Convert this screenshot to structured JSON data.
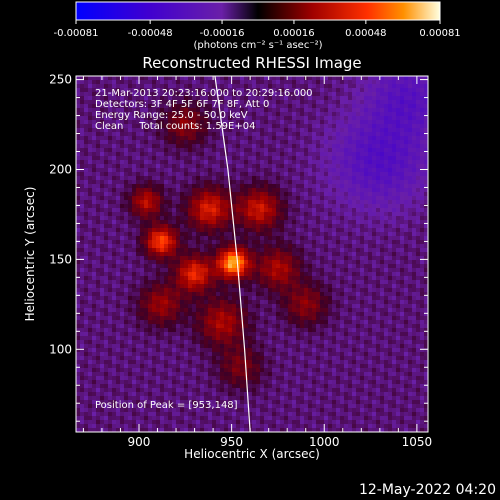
{
  "chart_data": {
    "type": "heatmap",
    "title": "Reconstructed RHESSI Image",
    "xlabel": "Heliocentric X (arcsec)",
    "ylabel": "Heliocentric Y (arcsec)",
    "xlim": [
      866,
      1056
    ],
    "ylim": [
      54,
      252
    ],
    "x_ticks": [
      900,
      950,
      1000,
      1050
    ],
    "y_ticks": [
      100,
      150,
      200,
      250
    ],
    "colorbar": {
      "min": -0.00081,
      "max": 0.00081,
      "tick_values": [
        -0.00081,
        -0.00048,
        -0.00016,
        0.00016,
        0.00048,
        0.00081
      ],
      "tick_labels": [
        "-0.00081",
        "-0.00048",
        "-0.00016",
        "0.00016",
        "0.00048",
        "0.00081"
      ],
      "unit": "(photons cm⁻² s⁻¹ asec⁻²)"
    },
    "annotations": [
      "21-Mar-2013 20:23:16.000 to 20:29:16.000",
      "Detectors: 3F 4F 5F 6F 7F 8F, Att 0",
      "Energy Range: 25.0 - 50.0 keV",
      "Clean     Total counts: 1.59E+04"
    ],
    "peak": {
      "label": "Position of Peak = [953,148]",
      "x": 953,
      "y": 148
    },
    "limb": [
      [
        941,
        252
      ],
      [
        948,
        200
      ],
      [
        953,
        150
      ],
      [
        957,
        100
      ],
      [
        960,
        54
      ]
    ],
    "sources": [
      {
        "x": 951,
        "y": 148,
        "amp": 1.0,
        "sigma": 6
      },
      {
        "x": 912,
        "y": 160,
        "amp": 0.75,
        "sigma": 6
      },
      {
        "x": 930,
        "y": 142,
        "amp": 0.65,
        "sigma": 7
      },
      {
        "x": 938,
        "y": 178,
        "amp": 0.6,
        "sigma": 8
      },
      {
        "x": 904,
        "y": 182,
        "amp": 0.5,
        "sigma": 6
      },
      {
        "x": 965,
        "y": 178,
        "amp": 0.55,
        "sigma": 8
      },
      {
        "x": 975,
        "y": 145,
        "amp": 0.45,
        "sigma": 8
      },
      {
        "x": 912,
        "y": 125,
        "amp": 0.4,
        "sigma": 8
      },
      {
        "x": 945,
        "y": 115,
        "amp": 0.45,
        "sigma": 9
      },
      {
        "x": 990,
        "y": 125,
        "amp": 0.35,
        "sigma": 8
      },
      {
        "x": 925,
        "y": 225,
        "amp": 0.35,
        "sigma": 8
      },
      {
        "x": 955,
        "y": 90,
        "amp": 0.3,
        "sigma": 8
      }
    ],
    "negative_regions": [
      {
        "x": 1030,
        "y": 205,
        "amp": -0.3,
        "sigma": 18
      },
      {
        "x": 1045,
        "y": 240,
        "amp": -0.25,
        "sigma": 15
      }
    ]
  },
  "footer": {
    "timestamp": "12-May-2022 04:20"
  }
}
